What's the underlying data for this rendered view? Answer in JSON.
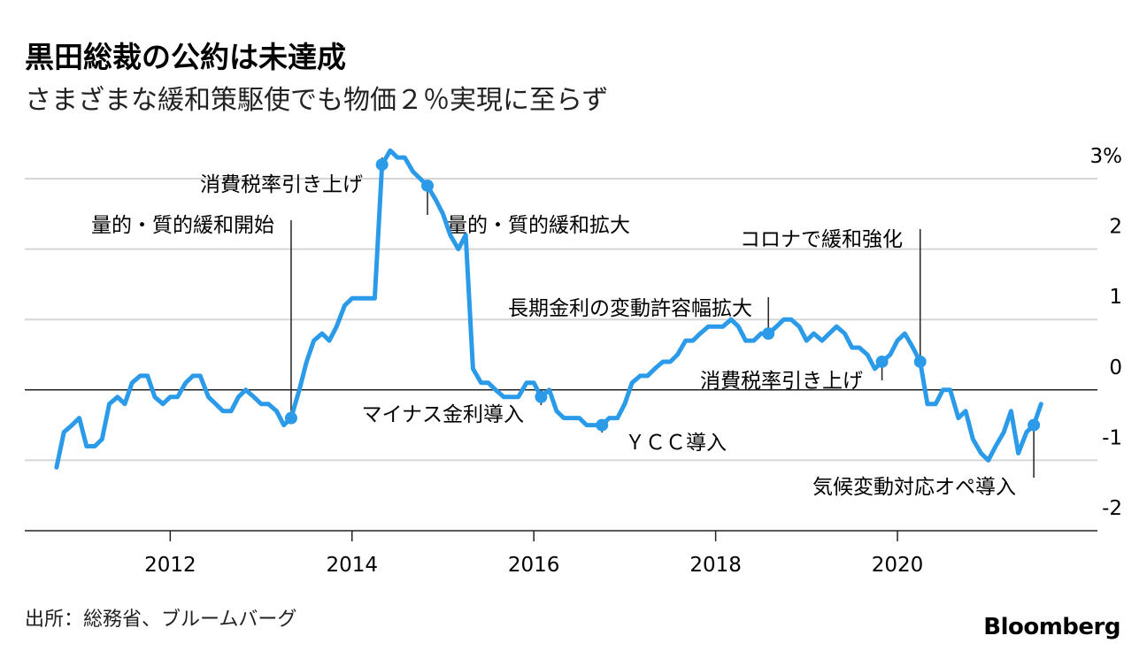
{
  "header": {
    "title": "黒田総裁の公約は未達成",
    "subtitle": "さまざまな緩和策駆使でも物価２％実現に至らず"
  },
  "footer": {
    "source": "出所：総務省、ブルームバーグ",
    "brand": "Bloomberg"
  },
  "colors": {
    "line": "#2b9be9",
    "grid": "#d6d6d6",
    "zero": "#222222",
    "text": "#000000"
  },
  "chart_data": {
    "type": "line",
    "title": "黒田総裁の公約は未達成",
    "subtitle": "さまざまな緩和策駆使でも物価２％実現に至らず",
    "xlabel": "",
    "ylabel": "",
    "xlim": [
      2010.4,
      2022.2
    ],
    "ylim": [
      -2,
      3
    ],
    "grid": true,
    "x_ticks": [
      2012,
      2014,
      2016,
      2018,
      2020
    ],
    "x_tick_labels": [
      "2012",
      "2014",
      "2016",
      "2018",
      "2020"
    ],
    "y_ticks": [
      -2,
      -1,
      0,
      1,
      2,
      3
    ],
    "y_tick_labels": [
      "-2",
      "-1",
      "0",
      "1",
      "2",
      "3%"
    ],
    "series": [
      {
        "points": [
          [
            2010.75,
            -1.1
          ],
          [
            2010.83,
            -0.6
          ],
          [
            2010.92,
            -0.5
          ],
          [
            2011.0,
            -0.4
          ],
          [
            2011.08,
            -0.8
          ],
          [
            2011.17,
            -0.8
          ],
          [
            2011.25,
            -0.7
          ],
          [
            2011.33,
            -0.2
          ],
          [
            2011.42,
            -0.1
          ],
          [
            2011.5,
            -0.2
          ],
          [
            2011.58,
            0.1
          ],
          [
            2011.67,
            0.2
          ],
          [
            2011.75,
            0.2
          ],
          [
            2011.83,
            -0.1
          ],
          [
            2011.92,
            -0.2
          ],
          [
            2012.0,
            -0.1
          ],
          [
            2012.08,
            -0.1
          ],
          [
            2012.17,
            0.1
          ],
          [
            2012.25,
            0.2
          ],
          [
            2012.33,
            0.2
          ],
          [
            2012.42,
            -0.1
          ],
          [
            2012.5,
            -0.2
          ],
          [
            2012.58,
            -0.3
          ],
          [
            2012.67,
            -0.3
          ],
          [
            2012.75,
            -0.1
          ],
          [
            2012.83,
            0.0
          ],
          [
            2012.92,
            -0.1
          ],
          [
            2013.0,
            -0.2
          ],
          [
            2013.08,
            -0.2
          ],
          [
            2013.17,
            -0.3
          ],
          [
            2013.25,
            -0.5
          ],
          [
            2013.33,
            -0.4
          ],
          [
            2013.42,
            0.0
          ],
          [
            2013.5,
            0.4
          ],
          [
            2013.58,
            0.7
          ],
          [
            2013.67,
            0.8
          ],
          [
            2013.75,
            0.7
          ],
          [
            2013.83,
            0.9
          ],
          [
            2013.92,
            1.2
          ],
          [
            2014.0,
            1.3
          ],
          [
            2014.08,
            1.3
          ],
          [
            2014.17,
            1.3
          ],
          [
            2014.25,
            1.3
          ],
          [
            2014.33,
            3.2
          ],
          [
            2014.42,
            3.4
          ],
          [
            2014.5,
            3.3
          ],
          [
            2014.58,
            3.3
          ],
          [
            2014.67,
            3.1
          ],
          [
            2014.75,
            3.0
          ],
          [
            2014.83,
            2.9
          ],
          [
            2014.92,
            2.7
          ],
          [
            2015.0,
            2.5
          ],
          [
            2015.08,
            2.2
          ],
          [
            2015.17,
            2.0
          ],
          [
            2015.25,
            2.2
          ],
          [
            2015.33,
            0.3
          ],
          [
            2015.42,
            0.1
          ],
          [
            2015.5,
            0.1
          ],
          [
            2015.58,
            0.0
          ],
          [
            2015.67,
            -0.1
          ],
          [
            2015.75,
            -0.1
          ],
          [
            2015.83,
            -0.1
          ],
          [
            2015.92,
            0.1
          ],
          [
            2016.0,
            0.1
          ],
          [
            2016.08,
            -0.1
          ],
          [
            2016.17,
            0.0
          ],
          [
            2016.25,
            -0.3
          ],
          [
            2016.33,
            -0.4
          ],
          [
            2016.42,
            -0.4
          ],
          [
            2016.5,
            -0.4
          ],
          [
            2016.58,
            -0.5
          ],
          [
            2016.67,
            -0.5
          ],
          [
            2016.75,
            -0.5
          ],
          [
            2016.83,
            -0.4
          ],
          [
            2016.92,
            -0.4
          ],
          [
            2017.0,
            -0.2
          ],
          [
            2017.08,
            0.1
          ],
          [
            2017.17,
            0.2
          ],
          [
            2017.25,
            0.2
          ],
          [
            2017.33,
            0.3
          ],
          [
            2017.42,
            0.4
          ],
          [
            2017.5,
            0.4
          ],
          [
            2017.58,
            0.5
          ],
          [
            2017.67,
            0.7
          ],
          [
            2017.75,
            0.7
          ],
          [
            2017.83,
            0.8
          ],
          [
            2017.92,
            0.9
          ],
          [
            2018.0,
            0.9
          ],
          [
            2018.08,
            0.9
          ],
          [
            2018.17,
            1.0
          ],
          [
            2018.25,
            0.9
          ],
          [
            2018.33,
            0.7
          ],
          [
            2018.42,
            0.7
          ],
          [
            2018.5,
            0.8
          ],
          [
            2018.58,
            0.8
          ],
          [
            2018.67,
            0.9
          ],
          [
            2018.75,
            1.0
          ],
          [
            2018.83,
            1.0
          ],
          [
            2018.92,
            0.9
          ],
          [
            2019.0,
            0.7
          ],
          [
            2019.08,
            0.8
          ],
          [
            2019.17,
            0.7
          ],
          [
            2019.25,
            0.8
          ],
          [
            2019.33,
            0.9
          ],
          [
            2019.42,
            0.8
          ],
          [
            2019.5,
            0.6
          ],
          [
            2019.58,
            0.6
          ],
          [
            2019.67,
            0.5
          ],
          [
            2019.75,
            0.3
          ],
          [
            2019.83,
            0.4
          ],
          [
            2019.92,
            0.5
          ],
          [
            2020.0,
            0.7
          ],
          [
            2020.08,
            0.8
          ],
          [
            2020.17,
            0.6
          ],
          [
            2020.25,
            0.4
          ],
          [
            2020.33,
            -0.2
          ],
          [
            2020.42,
            -0.2
          ],
          [
            2020.5,
            0.0
          ],
          [
            2020.58,
            0.0
          ],
          [
            2020.67,
            -0.4
          ],
          [
            2020.75,
            -0.3
          ],
          [
            2020.83,
            -0.7
          ],
          [
            2020.92,
            -0.9
          ],
          [
            2021.0,
            -1.0
          ],
          [
            2021.08,
            -0.8
          ],
          [
            2021.17,
            -0.6
          ],
          [
            2021.25,
            -0.3
          ],
          [
            2021.33,
            -0.9
          ],
          [
            2021.42,
            -0.6
          ],
          [
            2021.5,
            -0.5
          ],
          [
            2021.58,
            -0.2
          ]
        ]
      }
    ],
    "markers": [
      [
        2013.33,
        -0.4
      ],
      [
        2014.33,
        3.2
      ],
      [
        2014.83,
        2.9
      ],
      [
        2016.08,
        -0.1
      ],
      [
        2016.75,
        -0.5
      ],
      [
        2018.58,
        0.8
      ],
      [
        2019.83,
        0.4
      ],
      [
        2020.25,
        0.4
      ],
      [
        2021.5,
        -0.5
      ]
    ],
    "annotations": [
      {
        "text": "量的・質的緩和開始",
        "x": 2013.33,
        "y": -0.4
      },
      {
        "text": "消費税率引き上げ",
        "x": 2014.33,
        "y": 3.2
      },
      {
        "text": "量的・質的緩和拡大",
        "x": 2014.83,
        "y": 2.9
      },
      {
        "text": "マイナス金利導入",
        "x": 2016.08,
        "y": -0.1
      },
      {
        "text": "ＹＣＣ導入",
        "x": 2016.75,
        "y": -0.5
      },
      {
        "text": "長期金利の変動許容幅拡大",
        "x": 2018.58,
        "y": 0.8
      },
      {
        "text": "消費税率引き上げ",
        "x": 2019.83,
        "y": 0.4
      },
      {
        "text": "コロナで緩和強化",
        "x": 2020.25,
        "y": 0.4
      },
      {
        "text": "気候変動対応オペ導入",
        "x": 2021.5,
        "y": -0.5
      }
    ]
  }
}
